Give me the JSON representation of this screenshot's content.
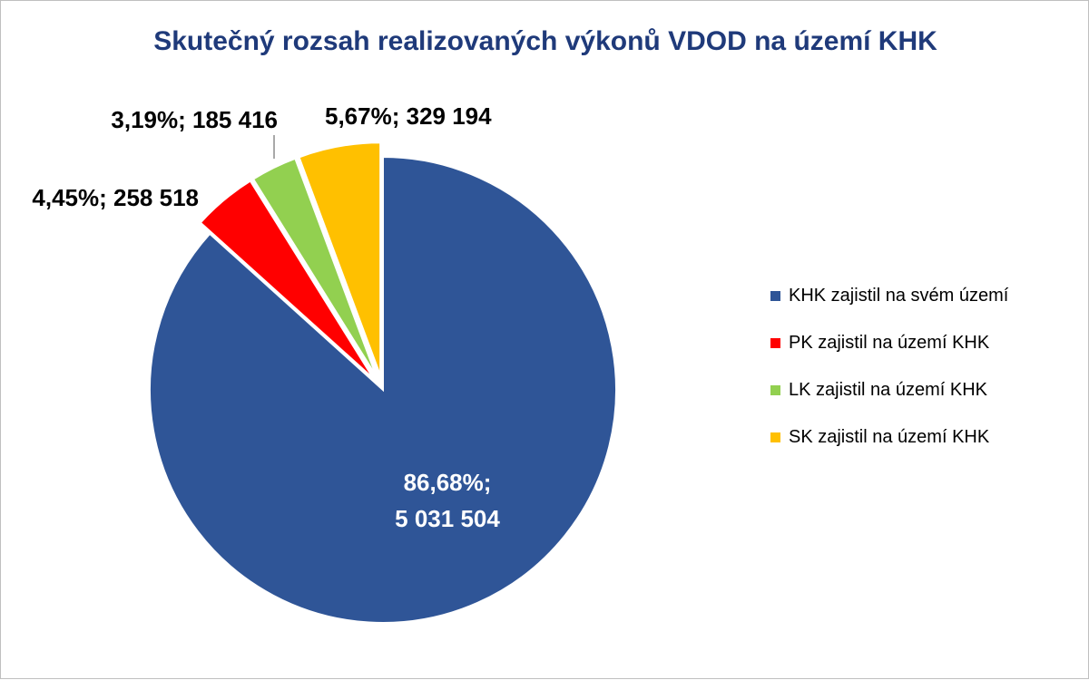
{
  "chart_data": {
    "type": "pie",
    "title": "Skutečný rozsah realizovaných výkonů VDOD na území KHK",
    "slices": [
      {
        "name": "KHK zajistil na svém území",
        "value": 5031504,
        "percent": 86.68,
        "label_line1": "86,68%;",
        "label_line2": "5 031 504",
        "color": "#2f5597",
        "label_color": "#ffffff",
        "exploded": false
      },
      {
        "name": "PK zajistil na území KHK",
        "value": 258518,
        "percent": 4.45,
        "label_line1": "4,45%; 258 518",
        "label_line2": "",
        "color": "#ff0000",
        "label_color": "#000000",
        "exploded": true
      },
      {
        "name": "LK zajistil na území KHK",
        "value": 185416,
        "percent": 3.19,
        "label_line1": "3,19%; 185 416",
        "label_line2": "",
        "color": "#92d050",
        "label_color": "#000000",
        "exploded": true
      },
      {
        "name": "SK zajistil na území KHK",
        "value": 329194,
        "percent": 5.67,
        "label_line1": "5,67%; 329 194",
        "label_line2": "",
        "color": "#ffc000",
        "label_color": "#000000",
        "exploded": true
      }
    ],
    "legend_position": "right"
  }
}
